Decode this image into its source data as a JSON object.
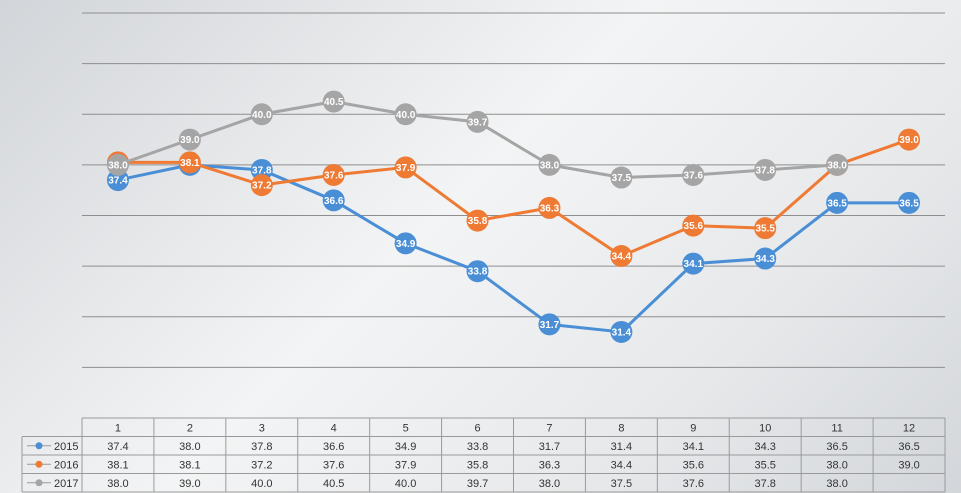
{
  "chart_data": {
    "type": "line",
    "title": "",
    "xlabel": "",
    "ylabel": "",
    "categories": [
      "1",
      "2",
      "3",
      "4",
      "5",
      "6",
      "7",
      "8",
      "9",
      "10",
      "11",
      "12"
    ],
    "ylim": [
      28,
      44
    ],
    "grid": true,
    "legend_placement": "data-table-left",
    "series": [
      {
        "name": "2015",
        "color": "#4a8fd6",
        "values": [
          37.4,
          38.0,
          37.8,
          36.6,
          34.9,
          33.8,
          31.7,
          31.4,
          34.1,
          34.3,
          36.5,
          36.5
        ],
        "table_values": [
          "37.4",
          "38.0",
          "37.8",
          "36.6",
          "34.9",
          "33.8",
          "31.7",
          "31.4",
          "34.1",
          "34.3",
          "36.5",
          "36.5"
        ]
      },
      {
        "name": "2016",
        "color": "#ef7a33",
        "values": [
          38.1,
          38.1,
          37.2,
          37.6,
          37.9,
          35.8,
          36.3,
          34.4,
          35.6,
          35.5,
          38.0,
          39.0
        ],
        "table_values": [
          "38.1",
          "38.1",
          "37.2",
          "37.6",
          "37.9",
          "35.8",
          "36.3",
          "34.4",
          "35.6",
          "35.5",
          "38.0",
          "39.0"
        ]
      },
      {
        "name": "2017",
        "color": "#a5a5a5",
        "values": [
          38.0,
          39.0,
          40.0,
          40.5,
          40.0,
          39.7,
          38.0,
          37.5,
          37.6,
          37.8,
          38.0,
          null
        ],
        "table_values": [
          "38.0",
          "39.0",
          "40.0",
          "40.5",
          "40.0",
          "39.7",
          "38.0",
          "37.5",
          "37.6",
          "37.8",
          "38.0",
          ""
        ]
      }
    ]
  }
}
